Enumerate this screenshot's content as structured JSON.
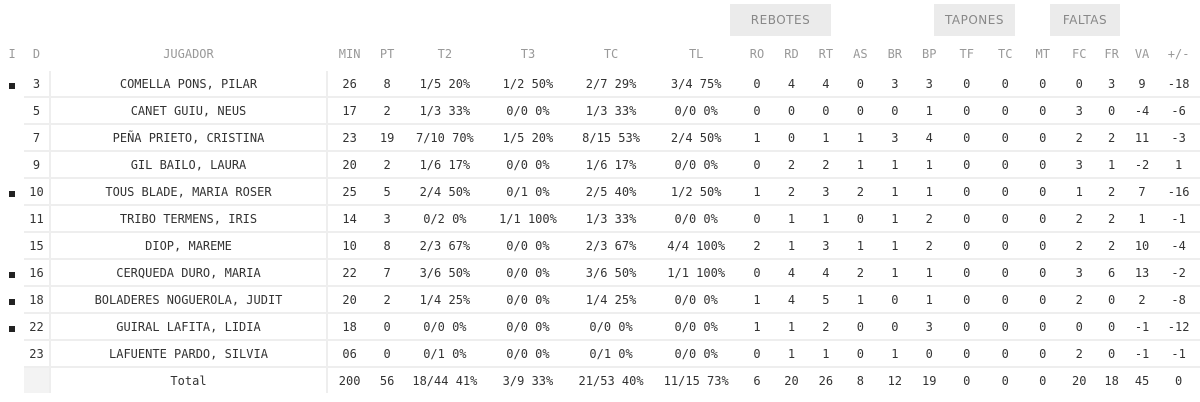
{
  "groups": [
    {
      "key": "rebotes",
      "label": "REBOTES"
    },
    {
      "key": "tapones",
      "label": "TAPONES"
    },
    {
      "key": "faltas",
      "label": "FALTAS"
    }
  ],
  "headers": [
    "I",
    "D",
    "JUGADOR",
    "MIN",
    "PT",
    "T2",
    "T3",
    "TC",
    "TL",
    "RO",
    "RD",
    "RT",
    "AS",
    "BR",
    "BP",
    "TF",
    "TC",
    "MT",
    "FC",
    "FR",
    "VA",
    "+/-"
  ],
  "players": [
    {
      "starter": true,
      "dorsal": "3",
      "name": "COMELLA PONS, PILAR",
      "min": "26",
      "pt": "8",
      "t2": "1/5 20%",
      "t3": "1/2 50%",
      "tc": "2/7 29%",
      "tl": "3/4 75%",
      "ro": "0",
      "rd": "4",
      "rt": "4",
      "as": "0",
      "br": "3",
      "bp": "3",
      "tf": "0",
      "tcb": "0",
      "mt": "0",
      "fc": "0",
      "fr": "3",
      "va": "9",
      "pm": "-18"
    },
    {
      "starter": false,
      "dorsal": "5",
      "name": "CANET GUIU, NEUS",
      "min": "17",
      "pt": "2",
      "t2": "1/3 33%",
      "t3": "0/0 0%",
      "tc": "1/3 33%",
      "tl": "0/0 0%",
      "ro": "0",
      "rd": "0",
      "rt": "0",
      "as": "0",
      "br": "0",
      "bp": "1",
      "tf": "0",
      "tcb": "0",
      "mt": "0",
      "fc": "3",
      "fr": "0",
      "va": "-4",
      "pm": "-6"
    },
    {
      "starter": false,
      "dorsal": "7",
      "name": "PEÑA PRIETO, CRISTINA",
      "min": "23",
      "pt": "19",
      "t2": "7/10 70%",
      "t3": "1/5 20%",
      "tc": "8/15 53%",
      "tl": "2/4 50%",
      "ro": "1",
      "rd": "0",
      "rt": "1",
      "as": "1",
      "br": "3",
      "bp": "4",
      "tf": "0",
      "tcb": "0",
      "mt": "0",
      "fc": "2",
      "fr": "2",
      "va": "11",
      "pm": "-3"
    },
    {
      "starter": false,
      "dorsal": "9",
      "name": "GIL BAILO, LAURA",
      "min": "20",
      "pt": "2",
      "t2": "1/6 17%",
      "t3": "0/0 0%",
      "tc": "1/6 17%",
      "tl": "0/0 0%",
      "ro": "0",
      "rd": "2",
      "rt": "2",
      "as": "1",
      "br": "1",
      "bp": "1",
      "tf": "0",
      "tcb": "0",
      "mt": "0",
      "fc": "3",
      "fr": "1",
      "va": "-2",
      "pm": "1"
    },
    {
      "starter": true,
      "dorsal": "10",
      "name": "TOUS BLADE, MARIA ROSER",
      "min": "25",
      "pt": "5",
      "t2": "2/4 50%",
      "t3": "0/1 0%",
      "tc": "2/5 40%",
      "tl": "1/2 50%",
      "ro": "1",
      "rd": "2",
      "rt": "3",
      "as": "2",
      "br": "1",
      "bp": "1",
      "tf": "0",
      "tcb": "0",
      "mt": "0",
      "fc": "1",
      "fr": "2",
      "va": "7",
      "pm": "-16"
    },
    {
      "starter": false,
      "dorsal": "11",
      "name": "TRIBO TERMENS, IRIS",
      "min": "14",
      "pt": "3",
      "t2": "0/2 0%",
      "t3": "1/1 100%",
      "tc": "1/3 33%",
      "tl": "0/0 0%",
      "ro": "0",
      "rd": "1",
      "rt": "1",
      "as": "0",
      "br": "1",
      "bp": "2",
      "tf": "0",
      "tcb": "0",
      "mt": "0",
      "fc": "2",
      "fr": "2",
      "va": "1",
      "pm": "-1"
    },
    {
      "starter": false,
      "dorsal": "15",
      "name": "DIOP, MAREME",
      "min": "10",
      "pt": "8",
      "t2": "2/3 67%",
      "t3": "0/0 0%",
      "tc": "2/3 67%",
      "tl": "4/4 100%",
      "ro": "2",
      "rd": "1",
      "rt": "3",
      "as": "1",
      "br": "1",
      "bp": "2",
      "tf": "0",
      "tcb": "0",
      "mt": "0",
      "fc": "2",
      "fr": "2",
      "va": "10",
      "pm": "-4"
    },
    {
      "starter": true,
      "dorsal": "16",
      "name": "CERQUEDA DURO, MARIA",
      "min": "22",
      "pt": "7",
      "t2": "3/6 50%",
      "t3": "0/0 0%",
      "tc": "3/6 50%",
      "tl": "1/1 100%",
      "ro": "0",
      "rd": "4",
      "rt": "4",
      "as": "2",
      "br": "1",
      "bp": "1",
      "tf": "0",
      "tcb": "0",
      "mt": "0",
      "fc": "3",
      "fr": "6",
      "va": "13",
      "pm": "-2"
    },
    {
      "starter": true,
      "dorsal": "18",
      "name": "BOLADERES NOGUEROLA, JUDIT",
      "min": "20",
      "pt": "2",
      "t2": "1/4 25%",
      "t3": "0/0 0%",
      "tc": "1/4 25%",
      "tl": "0/0 0%",
      "ro": "1",
      "rd": "4",
      "rt": "5",
      "as": "1",
      "br": "0",
      "bp": "1",
      "tf": "0",
      "tcb": "0",
      "mt": "0",
      "fc": "2",
      "fr": "0",
      "va": "2",
      "pm": "-8"
    },
    {
      "starter": true,
      "dorsal": "22",
      "name": "GUIRAL LAFITA, LIDIA",
      "min": "18",
      "pt": "0",
      "t2": "0/0 0%",
      "t3": "0/0 0%",
      "tc": "0/0 0%",
      "tl": "0/0 0%",
      "ro": "1",
      "rd": "1",
      "rt": "2",
      "as": "0",
      "br": "0",
      "bp": "3",
      "tf": "0",
      "tcb": "0",
      "mt": "0",
      "fc": "0",
      "fr": "0",
      "va": "-1",
      "pm": "-12"
    },
    {
      "starter": false,
      "dorsal": "23",
      "name": "LAFUENTE PARDO, SILVIA",
      "min": "06",
      "pt": "0",
      "t2": "0/1 0%",
      "t3": "0/0 0%",
      "tc": "0/1 0%",
      "tl": "0/0 0%",
      "ro": "0",
      "rd": "1",
      "rt": "1",
      "as": "0",
      "br": "1",
      "bp": "0",
      "tf": "0",
      "tcb": "0",
      "mt": "0",
      "fc": "2",
      "fr": "0",
      "va": "-1",
      "pm": "-1"
    }
  ],
  "total": {
    "label": "Total",
    "min": "200",
    "pt": "56",
    "t2": "18/44 41%",
    "t3": "3/9 33%",
    "tc": "21/53 40%",
    "tl": "11/15 73%",
    "ro": "6",
    "rd": "20",
    "rt": "26",
    "as": "8",
    "br": "12",
    "bp": "19",
    "tf": "0",
    "tcb": "0",
    "mt": "0",
    "fc": "20",
    "fr": "18",
    "va": "45",
    "pm": "0"
  },
  "colors": {
    "group_bg": "#ebebeb",
    "header_text": "#999999",
    "border": "#eeeeee",
    "starter_marker": "#222222"
  }
}
